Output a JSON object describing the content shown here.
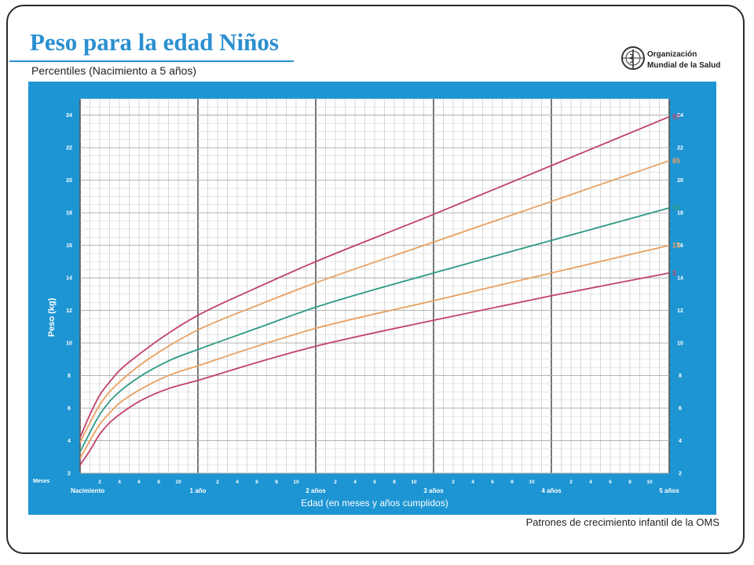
{
  "header": {
    "title": "Peso para la edad Niños",
    "subtitle": "Percentiles (Nacimiento a 5 años)"
  },
  "logo": {
    "line1": "Organización",
    "line2": "Mundial de la Salud",
    "icon": "who-emblem-icon"
  },
  "footer": {
    "note": "Patrones de crecimiento infantil de la OMS"
  },
  "colors": {
    "title": "#2a8fd0",
    "panel": "#1e95d3",
    "p97": "#c2416b",
    "p85": "#e8a062",
    "p50": "#2c9a84",
    "p15": "#e8a062",
    "p3": "#c2416b"
  },
  "chart_data": {
    "type": "line",
    "ylabel": "Peso (kg)",
    "xlabel": "Edad (en meses y años cumplidos)",
    "xlim": [
      0,
      60
    ],
    "ylim": [
      2,
      25
    ],
    "grid": true,
    "y_ticks": [
      2,
      4,
      6,
      8,
      10,
      12,
      14,
      16,
      18,
      20,
      22,
      24
    ],
    "x_row_label": "Meses",
    "x_month_ticks": [
      2,
      4,
      6,
      8,
      10,
      14,
      16,
      18,
      20,
      22,
      26,
      28,
      30,
      32,
      34,
      38,
      40,
      42,
      44,
      46,
      50,
      52,
      54,
      56,
      58
    ],
    "x_month_tick_labels": [
      "2",
      "4",
      "6",
      "8",
      "10",
      "2",
      "4",
      "6",
      "8",
      "10",
      "2",
      "4",
      "6",
      "8",
      "10",
      "2",
      "4",
      "6",
      "8",
      "10",
      "2",
      "4",
      "6",
      "8",
      "10"
    ],
    "x_year_ticks": [
      0,
      12,
      24,
      36,
      48,
      60
    ],
    "x_year_labels": [
      "Nacimiento",
      "1 año",
      "2 años",
      "3 años",
      "4 años",
      "5 años"
    ],
    "x": [
      0,
      1,
      2,
      3,
      4,
      6,
      9,
      12,
      18,
      24,
      36,
      48,
      60
    ],
    "series": [
      {
        "name": "97",
        "values": [
          4.2,
          5.6,
          6.8,
          7.6,
          8.3,
          9.3,
          10.6,
          11.7,
          13.4,
          15.0,
          17.9,
          20.9,
          23.9
        ]
      },
      {
        "name": "85",
        "values": [
          3.9,
          5.1,
          6.2,
          7.0,
          7.6,
          8.6,
          9.8,
          10.8,
          12.3,
          13.7,
          16.2,
          18.7,
          21.2
        ]
      },
      {
        "name": "50",
        "values": [
          3.3,
          4.5,
          5.6,
          6.4,
          7.0,
          7.9,
          8.9,
          9.6,
          10.9,
          12.2,
          14.3,
          16.3,
          18.3
        ]
      },
      {
        "name": "15",
        "values": [
          2.9,
          4.0,
          5.0,
          5.7,
          6.3,
          7.1,
          8.0,
          8.6,
          9.8,
          10.9,
          12.6,
          14.3,
          16.0
        ]
      },
      {
        "name": "3",
        "values": [
          2.5,
          3.4,
          4.4,
          5.1,
          5.6,
          6.4,
          7.2,
          7.7,
          8.8,
          9.8,
          11.4,
          12.9,
          14.3
        ]
      }
    ]
  }
}
